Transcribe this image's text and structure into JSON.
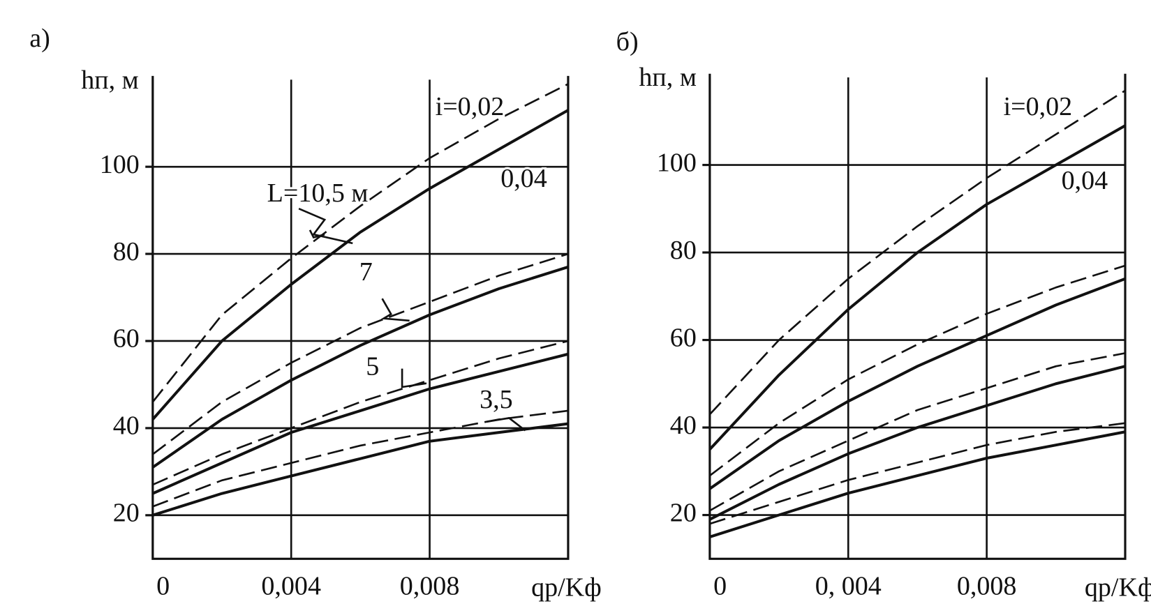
{
  "chart_data": [
    {
      "type": "line",
      "title": "а)",
      "y_label": "hп, м",
      "x_label": "qр/Kф",
      "x": [
        0,
        0.002,
        0.004,
        0.006,
        0.008,
        0.01,
        0.012
      ],
      "xlim": [
        0,
        0.012
      ],
      "ylim": [
        10,
        120
      ],
      "xticks": [
        0,
        {
          "value": 0.004,
          "label": "0,004"
        },
        {
          "value": 0.008,
          "label": "0,008"
        }
      ],
      "yticks": [
        20,
        40,
        60,
        80,
        100
      ],
      "grid": true,
      "annotations": [
        "i=0,02",
        "0,04",
        "L=10,5 м",
        "7",
        "5",
        "3,5"
      ],
      "series": [
        {
          "color": "#111111",
          "dashed": true,
          "values": [
            46,
            66,
            79,
            91,
            102,
            111,
            119
          ]
        },
        {
          "color": "#111111",
          "dashed": false,
          "values": [
            42,
            60,
            73,
            85,
            95,
            104,
            113
          ]
        },
        {
          "color": "#111111",
          "dashed": true,
          "values": [
            34,
            46,
            55,
            63,
            69,
            75,
            80
          ]
        },
        {
          "color": "#111111",
          "dashed": false,
          "values": [
            31,
            42,
            51,
            59,
            66,
            72,
            77
          ]
        },
        {
          "color": "#111111",
          "dashed": true,
          "values": [
            27,
            34,
            40,
            46,
            51,
            56,
            60
          ]
        },
        {
          "color": "#111111",
          "dashed": false,
          "values": [
            25,
            32,
            39,
            44,
            49,
            53,
            57
          ]
        },
        {
          "color": "#111111",
          "dashed": true,
          "values": [
            22,
            28,
            32,
            36,
            39,
            42,
            44
          ]
        },
        {
          "color": "#111111",
          "dashed": false,
          "values": [
            20,
            25,
            29,
            33,
            37,
            39,
            41
          ]
        }
      ]
    },
    {
      "type": "line",
      "title": "б)",
      "y_label": "hп, м",
      "x_label": "qр/Kф",
      "x": [
        0,
        0.002,
        0.004,
        0.006,
        0.008,
        0.01,
        0.012
      ],
      "xlim": [
        0,
        0.012
      ],
      "ylim": [
        10,
        120
      ],
      "xticks": [
        0,
        {
          "value": 0.004,
          "label": "0, 004"
        },
        {
          "value": 0.008,
          "label": "0,008"
        }
      ],
      "yticks": [
        20,
        40,
        60,
        80,
        100
      ],
      "grid": true,
      "annotations": [
        "i=0,02",
        "0,04"
      ],
      "series": [
        {
          "color": "#111111",
          "dashed": true,
          "values": [
            43,
            60,
            74,
            86,
            97,
            107,
            117
          ]
        },
        {
          "color": "#111111",
          "dashed": false,
          "values": [
            35,
            52,
            67,
            80,
            91,
            100,
            109
          ]
        },
        {
          "color": "#111111",
          "dashed": true,
          "values": [
            29,
            41,
            51,
            59,
            66,
            72,
            77
          ]
        },
        {
          "color": "#111111",
          "dashed": false,
          "values": [
            26,
            37,
            46,
            54,
            61,
            68,
            74
          ]
        },
        {
          "color": "#111111",
          "dashed": true,
          "values": [
            21,
            30,
            37,
            44,
            49,
            54,
            57
          ]
        },
        {
          "color": "#111111",
          "dashed": false,
          "values": [
            19,
            27,
            34,
            40,
            45,
            50,
            54
          ]
        },
        {
          "color": "#111111",
          "dashed": true,
          "values": [
            18,
            23,
            28,
            32,
            36,
            39,
            41
          ]
        },
        {
          "color": "#111111",
          "dashed": false,
          "values": [
            15,
            20,
            25,
            29,
            33,
            36,
            39
          ]
        }
      ]
    }
  ]
}
